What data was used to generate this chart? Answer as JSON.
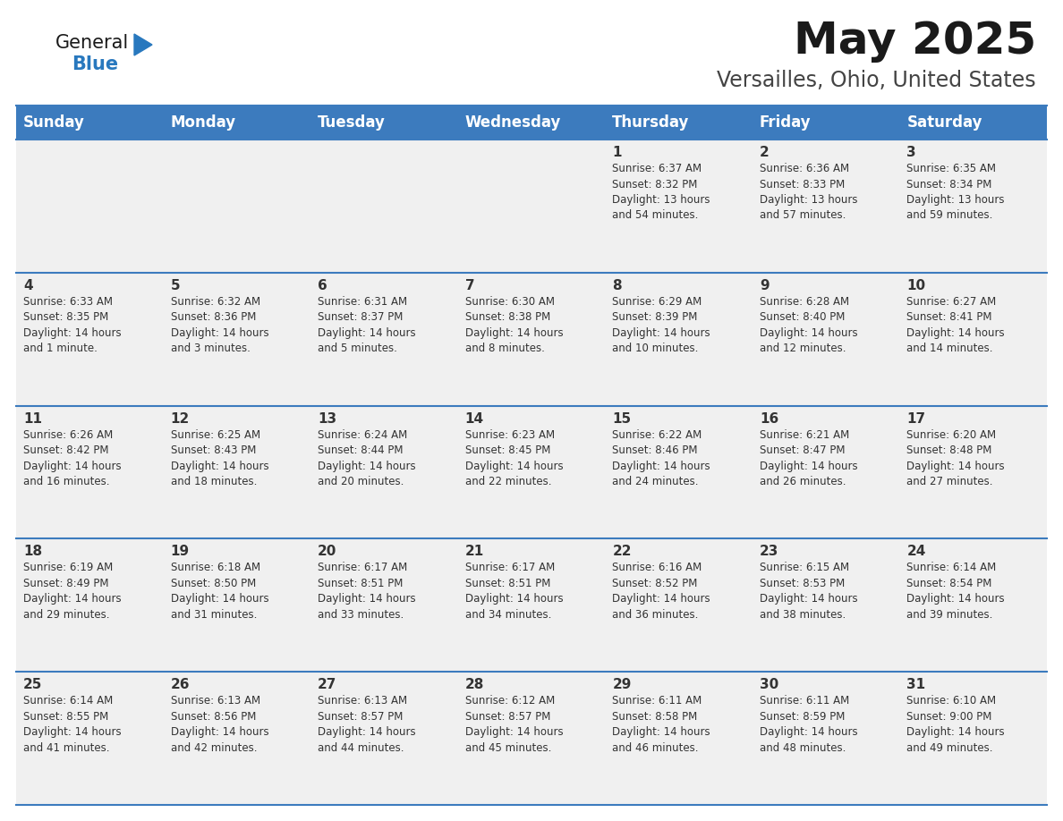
{
  "title": "May 2025",
  "subtitle": "Versailles, Ohio, United States",
  "header_color": "#3C7BBE",
  "header_text_color": "#FFFFFF",
  "cell_bg_color": "#F0F0F0",
  "border_color": "#3C7BBE",
  "text_color": "#333333",
  "days_of_week": [
    "Sunday",
    "Monday",
    "Tuesday",
    "Wednesday",
    "Thursday",
    "Friday",
    "Saturday"
  ],
  "title_fontsize": 36,
  "subtitle_fontsize": 17,
  "header_fontsize": 12,
  "day_num_fontsize": 11,
  "info_fontsize": 8.5,
  "calendar": [
    [
      {
        "day": "",
        "info": ""
      },
      {
        "day": "",
        "info": ""
      },
      {
        "day": "",
        "info": ""
      },
      {
        "day": "",
        "info": ""
      },
      {
        "day": "1",
        "info": "Sunrise: 6:37 AM\nSunset: 8:32 PM\nDaylight: 13 hours\nand 54 minutes."
      },
      {
        "day": "2",
        "info": "Sunrise: 6:36 AM\nSunset: 8:33 PM\nDaylight: 13 hours\nand 57 minutes."
      },
      {
        "day": "3",
        "info": "Sunrise: 6:35 AM\nSunset: 8:34 PM\nDaylight: 13 hours\nand 59 minutes."
      }
    ],
    [
      {
        "day": "4",
        "info": "Sunrise: 6:33 AM\nSunset: 8:35 PM\nDaylight: 14 hours\nand 1 minute."
      },
      {
        "day": "5",
        "info": "Sunrise: 6:32 AM\nSunset: 8:36 PM\nDaylight: 14 hours\nand 3 minutes."
      },
      {
        "day": "6",
        "info": "Sunrise: 6:31 AM\nSunset: 8:37 PM\nDaylight: 14 hours\nand 5 minutes."
      },
      {
        "day": "7",
        "info": "Sunrise: 6:30 AM\nSunset: 8:38 PM\nDaylight: 14 hours\nand 8 minutes."
      },
      {
        "day": "8",
        "info": "Sunrise: 6:29 AM\nSunset: 8:39 PM\nDaylight: 14 hours\nand 10 minutes."
      },
      {
        "day": "9",
        "info": "Sunrise: 6:28 AM\nSunset: 8:40 PM\nDaylight: 14 hours\nand 12 minutes."
      },
      {
        "day": "10",
        "info": "Sunrise: 6:27 AM\nSunset: 8:41 PM\nDaylight: 14 hours\nand 14 minutes."
      }
    ],
    [
      {
        "day": "11",
        "info": "Sunrise: 6:26 AM\nSunset: 8:42 PM\nDaylight: 14 hours\nand 16 minutes."
      },
      {
        "day": "12",
        "info": "Sunrise: 6:25 AM\nSunset: 8:43 PM\nDaylight: 14 hours\nand 18 minutes."
      },
      {
        "day": "13",
        "info": "Sunrise: 6:24 AM\nSunset: 8:44 PM\nDaylight: 14 hours\nand 20 minutes."
      },
      {
        "day": "14",
        "info": "Sunrise: 6:23 AM\nSunset: 8:45 PM\nDaylight: 14 hours\nand 22 minutes."
      },
      {
        "day": "15",
        "info": "Sunrise: 6:22 AM\nSunset: 8:46 PM\nDaylight: 14 hours\nand 24 minutes."
      },
      {
        "day": "16",
        "info": "Sunrise: 6:21 AM\nSunset: 8:47 PM\nDaylight: 14 hours\nand 26 minutes."
      },
      {
        "day": "17",
        "info": "Sunrise: 6:20 AM\nSunset: 8:48 PM\nDaylight: 14 hours\nand 27 minutes."
      }
    ],
    [
      {
        "day": "18",
        "info": "Sunrise: 6:19 AM\nSunset: 8:49 PM\nDaylight: 14 hours\nand 29 minutes."
      },
      {
        "day": "19",
        "info": "Sunrise: 6:18 AM\nSunset: 8:50 PM\nDaylight: 14 hours\nand 31 minutes."
      },
      {
        "day": "20",
        "info": "Sunrise: 6:17 AM\nSunset: 8:51 PM\nDaylight: 14 hours\nand 33 minutes."
      },
      {
        "day": "21",
        "info": "Sunrise: 6:17 AM\nSunset: 8:51 PM\nDaylight: 14 hours\nand 34 minutes."
      },
      {
        "day": "22",
        "info": "Sunrise: 6:16 AM\nSunset: 8:52 PM\nDaylight: 14 hours\nand 36 minutes."
      },
      {
        "day": "23",
        "info": "Sunrise: 6:15 AM\nSunset: 8:53 PM\nDaylight: 14 hours\nand 38 minutes."
      },
      {
        "day": "24",
        "info": "Sunrise: 6:14 AM\nSunset: 8:54 PM\nDaylight: 14 hours\nand 39 minutes."
      }
    ],
    [
      {
        "day": "25",
        "info": "Sunrise: 6:14 AM\nSunset: 8:55 PM\nDaylight: 14 hours\nand 41 minutes."
      },
      {
        "day": "26",
        "info": "Sunrise: 6:13 AM\nSunset: 8:56 PM\nDaylight: 14 hours\nand 42 minutes."
      },
      {
        "day": "27",
        "info": "Sunrise: 6:13 AM\nSunset: 8:57 PM\nDaylight: 14 hours\nand 44 minutes."
      },
      {
        "day": "28",
        "info": "Sunrise: 6:12 AM\nSunset: 8:57 PM\nDaylight: 14 hours\nand 45 minutes."
      },
      {
        "day": "29",
        "info": "Sunrise: 6:11 AM\nSunset: 8:58 PM\nDaylight: 14 hours\nand 46 minutes."
      },
      {
        "day": "30",
        "info": "Sunrise: 6:11 AM\nSunset: 8:59 PM\nDaylight: 14 hours\nand 48 minutes."
      },
      {
        "day": "31",
        "info": "Sunrise: 6:10 AM\nSunset: 9:00 PM\nDaylight: 14 hours\nand 49 minutes."
      }
    ]
  ]
}
